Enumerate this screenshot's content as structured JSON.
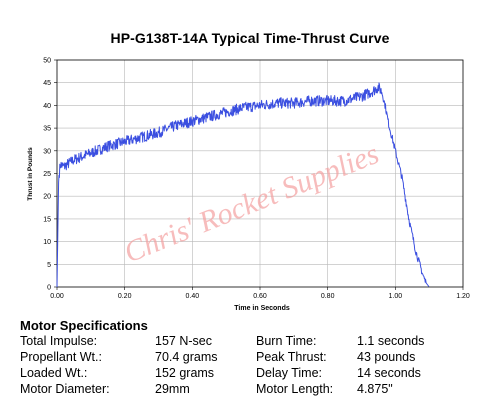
{
  "chart_data": {
    "type": "line",
    "title": "HP-G138T-14A Typical Time-Thrust Curve",
    "xlabel": "Time in Seconds",
    "ylabel": "Thrust in Pounds",
    "xlim": [
      0,
      1.2
    ],
    "ylim": [
      0,
      50
    ],
    "xticks": [
      "0.00",
      "0.20",
      "0.40",
      "0.60",
      "0.80",
      "1.00",
      "1.20"
    ],
    "yticks": [
      "0",
      "5",
      "10",
      "15",
      "20",
      "25",
      "30",
      "35",
      "40",
      "45",
      "50"
    ],
    "grid": true,
    "line_color": "#3b4fe0",
    "series": [
      {
        "x": [
          0.0,
          0.005,
          0.01,
          0.02,
          0.05,
          0.1,
          0.15,
          0.2,
          0.25,
          0.3,
          0.35,
          0.4,
          0.45,
          0.5,
          0.55,
          0.6,
          0.65,
          0.7,
          0.75,
          0.8,
          0.85,
          0.9,
          0.93,
          0.95,
          0.96,
          0.97,
          0.98,
          0.99,
          1.0,
          1.02,
          1.04,
          1.06,
          1.08,
          1.09,
          1.1
        ],
        "y": [
          0,
          24,
          27,
          26.5,
          28,
          29.5,
          31,
          32,
          33,
          34,
          35.5,
          36.5,
          37.5,
          38.5,
          39.5,
          40,
          40.5,
          40.5,
          41,
          41,
          41,
          42,
          43,
          44,
          43,
          40,
          36,
          33,
          30,
          24,
          15,
          8,
          3,
          1,
          0
        ]
      }
    ]
  },
  "watermark": "Chris' Rocket Supplies",
  "specs": {
    "heading": "Motor Specifications",
    "left": [
      {
        "label": "Total Impulse:",
        "value": "157 N-sec"
      },
      {
        "label": "Propellant Wt.:",
        "value": "70.4 grams"
      },
      {
        "label": "Loaded Wt.:",
        "value": "152 grams"
      },
      {
        "label": "Motor Diameter:",
        "value": "29mm"
      }
    ],
    "right": [
      {
        "label": "Burn Time:",
        "value": "1.1 seconds"
      },
      {
        "label": "Peak Thrust:",
        "value": "43 pounds"
      },
      {
        "label": "Delay Time:",
        "value": "14 seconds"
      },
      {
        "label": "Motor Length:",
        "value": "4.875\""
      }
    ]
  }
}
